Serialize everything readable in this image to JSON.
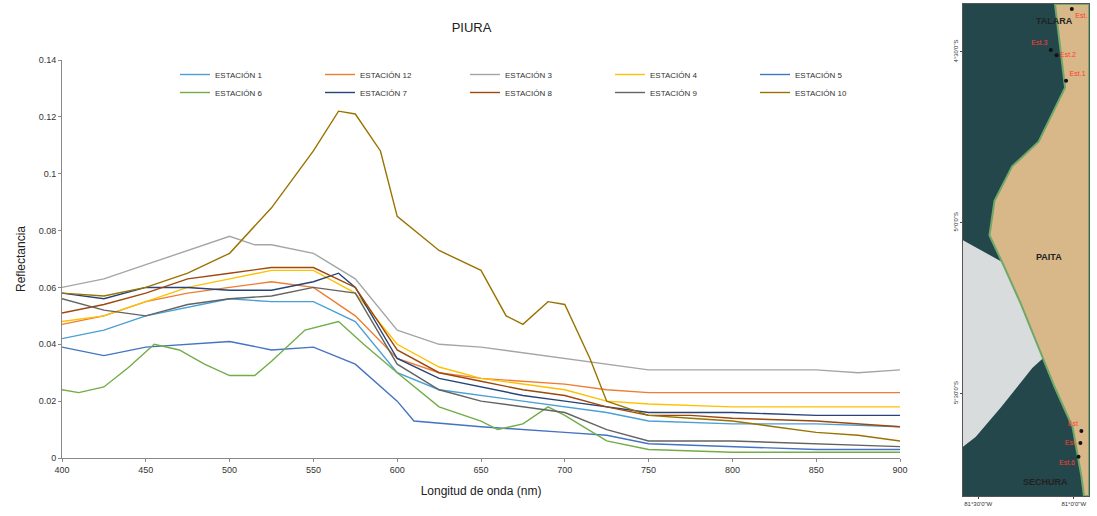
{
  "chart_data": [
    {
      "type": "line",
      "title": "PIURA",
      "x_label": "Longitud de onda (nm)",
      "y_label": "Reflectancia",
      "xlim": [
        400,
        900
      ],
      "xticks": [
        400,
        450,
        500,
        550,
        600,
        650,
        700,
        750,
        800,
        850,
        900
      ],
      "ylim": [
        0,
        0.14
      ],
      "yticks": [
        0,
        0.02,
        0.04,
        0.06,
        0.08,
        0.1,
        0.12,
        0.14
      ],
      "grid": false,
      "legend": "top right",
      "series": [
        {
          "name": "ESTACIÓN 1",
          "color": "#4a9fd5",
          "x": [
            400,
            425,
            450,
            475,
            500,
            525,
            550,
            575,
            600,
            625,
            650,
            675,
            700,
            725,
            750,
            800,
            850,
            900
          ],
          "values": [
            0.042,
            0.045,
            0.05,
            0.053,
            0.056,
            0.055,
            0.055,
            0.048,
            0.03,
            0.024,
            0.022,
            0.02,
            0.018,
            0.016,
            0.013,
            0.012,
            0.012,
            0.011
          ]
        },
        {
          "name": "ESTACIÓN 12",
          "color": "#ed7d31",
          "x": [
            400,
            425,
            450,
            475,
            500,
            525,
            550,
            575,
            600,
            625,
            650,
            675,
            700,
            725,
            750,
            800,
            850,
            900
          ],
          "values": [
            0.047,
            0.05,
            0.055,
            0.058,
            0.06,
            0.062,
            0.06,
            0.05,
            0.035,
            0.03,
            0.028,
            0.027,
            0.026,
            0.024,
            0.023,
            0.023,
            0.023,
            0.023
          ]
        },
        {
          "name": "ESTACIÓN 3",
          "color": "#a5a5a5",
          "x": [
            400,
            425,
            450,
            475,
            500,
            515,
            525,
            550,
            575,
            600,
            625,
            650,
            675,
            700,
            725,
            750,
            775,
            800,
            825,
            850,
            875,
            900
          ],
          "values": [
            0.06,
            0.063,
            0.068,
            0.073,
            0.078,
            0.075,
            0.075,
            0.072,
            0.063,
            0.045,
            0.04,
            0.039,
            0.037,
            0.035,
            0.033,
            0.031,
            0.031,
            0.031,
            0.031,
            0.031,
            0.03,
            0.031
          ]
        },
        {
          "name": "ESTACIÓN 4",
          "color": "#ffc000",
          "x": [
            400,
            425,
            450,
            475,
            500,
            525,
            550,
            575,
            600,
            625,
            650,
            675,
            700,
            725,
            750,
            800,
            850,
            900
          ],
          "values": [
            0.048,
            0.05,
            0.055,
            0.06,
            0.063,
            0.066,
            0.066,
            0.058,
            0.04,
            0.032,
            0.028,
            0.026,
            0.024,
            0.02,
            0.019,
            0.018,
            0.018,
            0.018
          ]
        },
        {
          "name": "ESTACIÓN 5",
          "color": "#4472c4",
          "x": [
            400,
            425,
            450,
            475,
            500,
            525,
            550,
            575,
            600,
            610,
            650,
            700,
            725,
            750,
            800,
            850,
            900
          ],
          "values": [
            0.039,
            0.036,
            0.039,
            0.04,
            0.041,
            0.038,
            0.039,
            0.033,
            0.02,
            0.013,
            0.011,
            0.009,
            0.008,
            0.005,
            0.004,
            0.003,
            0.003
          ]
        },
        {
          "name": "ESTACIÓN 6",
          "color": "#70ad47",
          "x": [
            400,
            410,
            425,
            440,
            455,
            470,
            485,
            500,
            515,
            525,
            545,
            565,
            580,
            600,
            625,
            650,
            660,
            675,
            690,
            700,
            725,
            750,
            800,
            850,
            900
          ],
          "values": [
            0.024,
            0.023,
            0.025,
            0.032,
            0.04,
            0.038,
            0.033,
            0.029,
            0.029,
            0.034,
            0.045,
            0.048,
            0.04,
            0.03,
            0.018,
            0.013,
            0.01,
            0.012,
            0.018,
            0.015,
            0.006,
            0.003,
            0.002,
            0.002,
            0.002
          ]
        },
        {
          "name": "ESTACIÓN 7",
          "color": "#264478",
          "x": [
            400,
            425,
            450,
            475,
            500,
            525,
            550,
            565,
            575,
            600,
            625,
            650,
            675,
            700,
            725,
            750,
            800,
            850,
            900
          ],
          "values": [
            0.058,
            0.056,
            0.06,
            0.06,
            0.059,
            0.059,
            0.062,
            0.065,
            0.06,
            0.035,
            0.028,
            0.025,
            0.022,
            0.02,
            0.018,
            0.016,
            0.016,
            0.015,
            0.015
          ]
        },
        {
          "name": "ESTACIÓN 8",
          "color": "#9e480e",
          "x": [
            400,
            425,
            450,
            475,
            500,
            525,
            550,
            575,
            600,
            625,
            650,
            675,
            700,
            725,
            750,
            775,
            800,
            850,
            900
          ],
          "values": [
            0.051,
            0.054,
            0.058,
            0.063,
            0.065,
            0.067,
            0.067,
            0.06,
            0.038,
            0.03,
            0.027,
            0.024,
            0.022,
            0.018,
            0.015,
            0.015,
            0.014,
            0.013,
            0.011
          ]
        },
        {
          "name": "ESTACIÓN 9",
          "color": "#636363",
          "x": [
            400,
            425,
            450,
            475,
            500,
            525,
            550,
            575,
            600,
            625,
            650,
            675,
            700,
            725,
            750,
            800,
            850,
            900
          ],
          "values": [
            0.056,
            0.052,
            0.05,
            0.054,
            0.056,
            0.057,
            0.06,
            0.058,
            0.033,
            0.024,
            0.02,
            0.018,
            0.016,
            0.01,
            0.006,
            0.006,
            0.005,
            0.004
          ]
        },
        {
          "name": "ESTACIÓN 10",
          "color": "#997300",
          "x": [
            400,
            425,
            450,
            475,
            500,
            525,
            550,
            565,
            575,
            590,
            600,
            625,
            650,
            665,
            675,
            690,
            700,
            715,
            725,
            750,
            775,
            800,
            825,
            850,
            875,
            900
          ],
          "values": [
            0.058,
            0.057,
            0.06,
            0.065,
            0.072,
            0.088,
            0.108,
            0.122,
            0.121,
            0.108,
            0.085,
            0.073,
            0.066,
            0.05,
            0.047,
            0.055,
            0.054,
            0.035,
            0.02,
            0.015,
            0.014,
            0.013,
            0.011,
            0.009,
            0.008,
            0.006
          ]
        }
      ]
    },
    {
      "type": "map",
      "xlim": [
        -81.58,
        -80.92
      ],
      "xticks": [
        {
          "value": -81.5,
          "label": "81°30'0\"W"
        },
        {
          "value": -81,
          "label": "81°0'0\"W"
        }
      ],
      "ylim": [
        -5.8,
        -4.36
      ],
      "yticks": [
        {
          "value": -4.5,
          "label": "4°30'0\"S"
        },
        {
          "value": -5,
          "label": "5°0'0\"S"
        },
        {
          "value": -5.5,
          "label": "5°30'0\"S"
        }
      ],
      "points": {
        "x": [
          -81.01,
          -81.12,
          -81.09,
          -81.04,
          -80.96,
          -80.965,
          -80.975
        ],
        "y": [
          -4.375,
          -4.495,
          -4.51,
          -4.585,
          -5.61,
          -5.645,
          -5.685
        ],
        "labels": [
          "Est.",
          "Est.3",
          "Est.2",
          "Est.1",
          "Est",
          "Est.",
          "Est.6"
        ]
      },
      "annotations": [
        {
          "text": "TALARA",
          "x": -81.1,
          "y": -4.41
        },
        {
          "text": "PAITA",
          "x": -81.13,
          "y": -5.1
        },
        {
          "text": "SECHURA",
          "x": -81.15,
          "y": -5.76
        }
      ]
    }
  ]
}
